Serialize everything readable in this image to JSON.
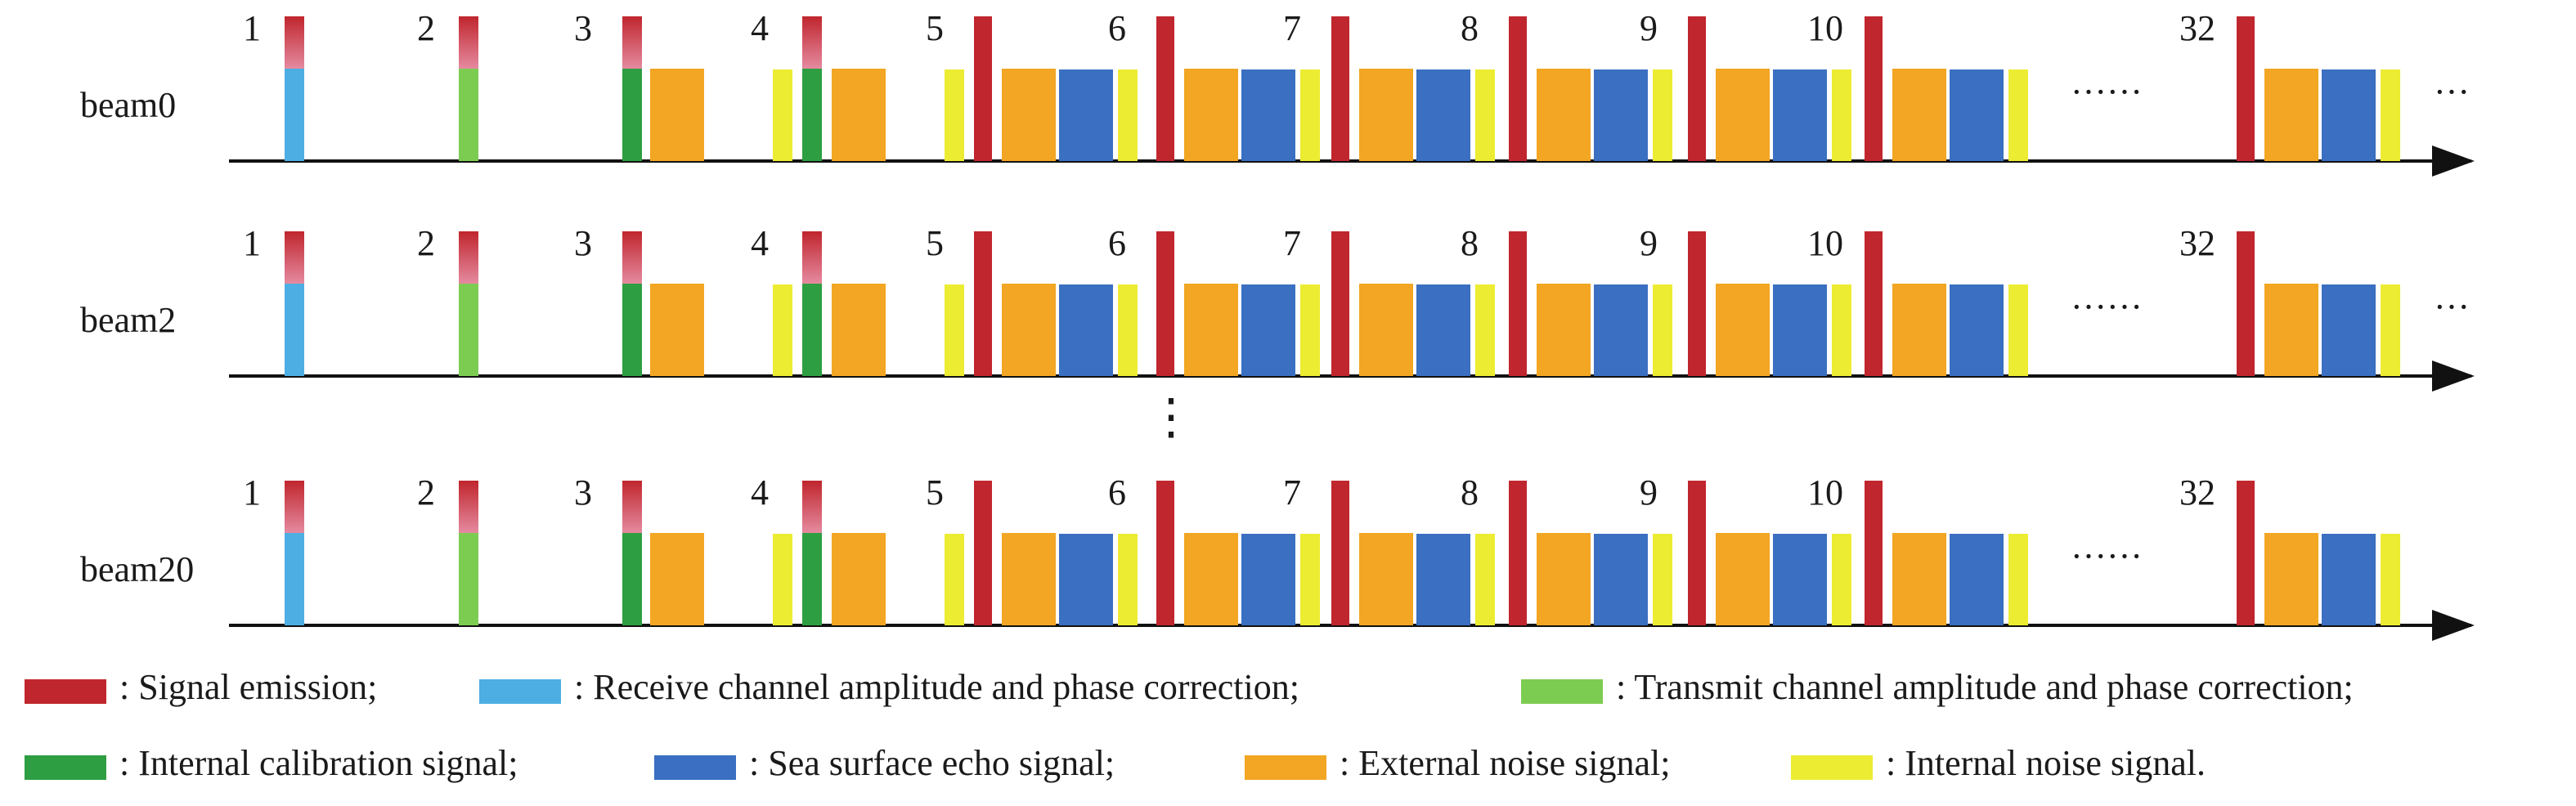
{
  "colors": {
    "emission": "#c0262d",
    "emission_fade": "#e58aa0",
    "receive_cal": "#4daee3",
    "transmit_cal": "#7dcc52",
    "internal_cal": "#2e9e42",
    "sea_echo": "#3a6fc1",
    "external_noise": "#f2a623",
    "internal_noise": "#ecec33",
    "axis": "#111111",
    "ellipsis": "#3a6fc1"
  },
  "beams": [
    {
      "label": "beam0",
      "trailing_dots": "···"
    },
    {
      "label": "beam2",
      "trailing_dots": "···"
    },
    {
      "label": "beam20",
      "trailing_dots": ""
    }
  ],
  "cycles": [
    {
      "number": "1",
      "blocks": [
        "receive_cal"
      ]
    },
    {
      "number": "2",
      "blocks": [
        "transmit_cal"
      ]
    },
    {
      "number": "3",
      "blocks": [
        "internal_cal",
        "external_noise"
      ]
    },
    {
      "number": "4",
      "blocks": [
        "internal_noise",
        "internal_cal",
        "external_noise"
      ]
    },
    {
      "number": "5",
      "blocks": [
        "internal_noise",
        "emission",
        "external_noise",
        "sea_echo",
        "internal_noise"
      ]
    },
    {
      "number": "6",
      "blocks": [
        "emission",
        "external_noise",
        "sea_echo",
        "internal_noise"
      ]
    },
    {
      "number": "7",
      "blocks": [
        "emission",
        "external_noise",
        "sea_echo",
        "internal_noise"
      ]
    },
    {
      "number": "8",
      "blocks": [
        "emission",
        "external_noise",
        "sea_echo",
        "internal_noise"
      ]
    },
    {
      "number": "9",
      "blocks": [
        "emission",
        "external_noise",
        "sea_echo",
        "internal_noise"
      ]
    },
    {
      "number": "10",
      "blocks": [
        "emission",
        "external_noise",
        "sea_echo",
        "internal_noise"
      ]
    },
    {
      "number": "32",
      "blocks": [
        "emission",
        "external_noise",
        "sea_echo",
        "internal_noise"
      ]
    }
  ],
  "gap_ellipsis": "······",
  "vertical_ellipsis": "⋮",
  "legend": [
    {
      "key": "emission",
      "label": ": Signal emission;"
    },
    {
      "key": "receive_cal",
      "label": ": Receive channel amplitude and phase correction;"
    },
    {
      "key": "transmit_cal",
      "label": ": Transmit channel amplitude and phase correction;"
    },
    {
      "key": "internal_cal",
      "label": ": Internal calibration signal;"
    },
    {
      "key": "sea_echo",
      "label": ": Sea surface echo signal;"
    },
    {
      "key": "external_noise",
      "label": ": External noise signal;"
    },
    {
      "key": "internal_noise",
      "label": ": Internal noise signal."
    }
  ]
}
